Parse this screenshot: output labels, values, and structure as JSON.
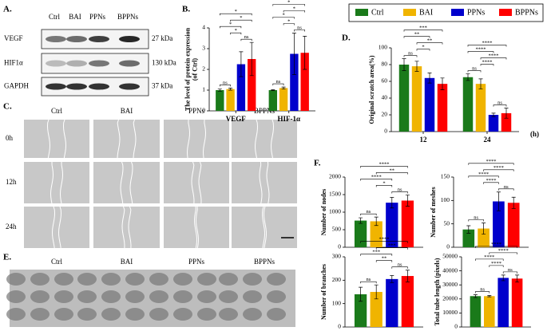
{
  "letters": {
    "A": "A.",
    "B": "B.",
    "C": "C.",
    "D": "D.",
    "E": "E.",
    "F": "F."
  },
  "blot": {
    "columns": [
      "Ctrl",
      "BAI",
      "PPNs",
      "BPPNs"
    ],
    "rows": [
      "VEGF",
      "HIF1α",
      "GAPDH"
    ],
    "sizes": [
      "27 kDa",
      "130 kDa",
      "37 kDa"
    ]
  },
  "scratch": {
    "columns": [
      "Ctrl",
      "BAI",
      "PPNs",
      "BPPNs"
    ],
    "rows": [
      "0h",
      "12h",
      "24h"
    ]
  },
  "tube": {
    "columns": [
      "Ctrl",
      "BAI",
      "PPNs",
      "BPPNs"
    ]
  },
  "legend": [
    {
      "name": "Ctrl",
      "color": "#1a7a1a"
    },
    {
      "name": "BAI",
      "color": "#f0b400"
    },
    {
      "name": "PPNs",
      "color": "#0000cc"
    },
    {
      "name": "BPPNs",
      "color": "#ff0000"
    }
  ],
  "chart_data": [
    {
      "type": "bar",
      "ylabel": [
        "The level of protein expression",
        "(of Ctrl)"
      ],
      "categories": [
        "VEGF",
        "HIF-1α"
      ],
      "values": [
        [
          1,
          1.05,
          2.25,
          2.5
        ],
        [
          1,
          1.1,
          2.75,
          2.8
        ]
      ],
      "errors": [
        [
          0.05,
          0.05,
          0.6,
          0.8
        ],
        [
          0.02,
          0.05,
          1.0,
          0.8
        ]
      ],
      "annotations": [
        "ns",
        "ns",
        "*",
        "*",
        "*",
        "*",
        "ns",
        "ns",
        "*",
        "*",
        "*",
        "*"
      ],
      "ylim": [
        0,
        4
      ],
      "yticks": [
        0,
        1,
        2,
        3,
        4
      ]
    },
    {
      "type": "bar",
      "ylabel": [
        "Original scratch area(%)"
      ],
      "xlabel": "(h)",
      "categories": [
        "12",
        "24"
      ],
      "values": [
        [
          80,
          78,
          64,
          57
        ],
        [
          65,
          57,
          20,
          22
        ]
      ],
      "errors": [
        [
          7,
          6,
          6,
          7
        ],
        [
          4,
          6,
          2,
          6
        ]
      ],
      "annotations": [
        "ns",
        "*",
        "**",
        "**",
        "***",
        "ns",
        "ns",
        "****",
        "****",
        "****",
        "****"
      ],
      "ylim": [
        0,
        100
      ],
      "yticks": [
        0,
        20,
        40,
        60,
        80,
        100
      ]
    },
    {
      "type": "bar",
      "ylabel": [
        "Number of nodes"
      ],
      "values": [
        760,
        740,
        1270,
        1330
      ],
      "errors": [
        80,
        120,
        150,
        160
      ],
      "annotations": [
        "ns",
        "ns",
        "*",
        "****",
        "**",
        "****"
      ],
      "ylim": [
        0,
        2000
      ],
      "yticks": [
        0,
        500,
        1000,
        1500,
        2000
      ]
    },
    {
      "type": "bar",
      "ylabel": [
        "Number of meshes"
      ],
      "values": [
        38,
        40,
        98,
        95
      ],
      "errors": [
        8,
        12,
        20,
        12
      ],
      "annotations": [
        "ns",
        "ns",
        "****",
        "****",
        "****",
        "****"
      ],
      "ylim": [
        0,
        150
      ],
      "yticks": [
        0,
        50,
        100,
        150
      ]
    },
    {
      "type": "bar",
      "ylabel": [
        "Number of branches"
      ],
      "values": [
        140,
        150,
        205,
        218
      ],
      "errors": [
        30,
        30,
        15,
        25
      ],
      "annotations": [
        "ns",
        "ns",
        "**",
        "***",
        "***",
        "****"
      ],
      "ylim": [
        0,
        300
      ],
      "yticks": [
        0,
        100,
        200,
        300
      ]
    },
    {
      "type": "bar",
      "ylabel": [
        "Total tube length (pixels)"
      ],
      "values": [
        22000,
        22000,
        35000,
        34500
      ],
      "errors": [
        1000,
        500,
        2000,
        2500
      ],
      "annotations": [
        "ns",
        "ns",
        "****",
        "****",
        "****",
        "****"
      ],
      "ylim": [
        0,
        50000
      ],
      "yticks": [
        0,
        10000,
        20000,
        30000,
        40000,
        50000
      ]
    }
  ]
}
